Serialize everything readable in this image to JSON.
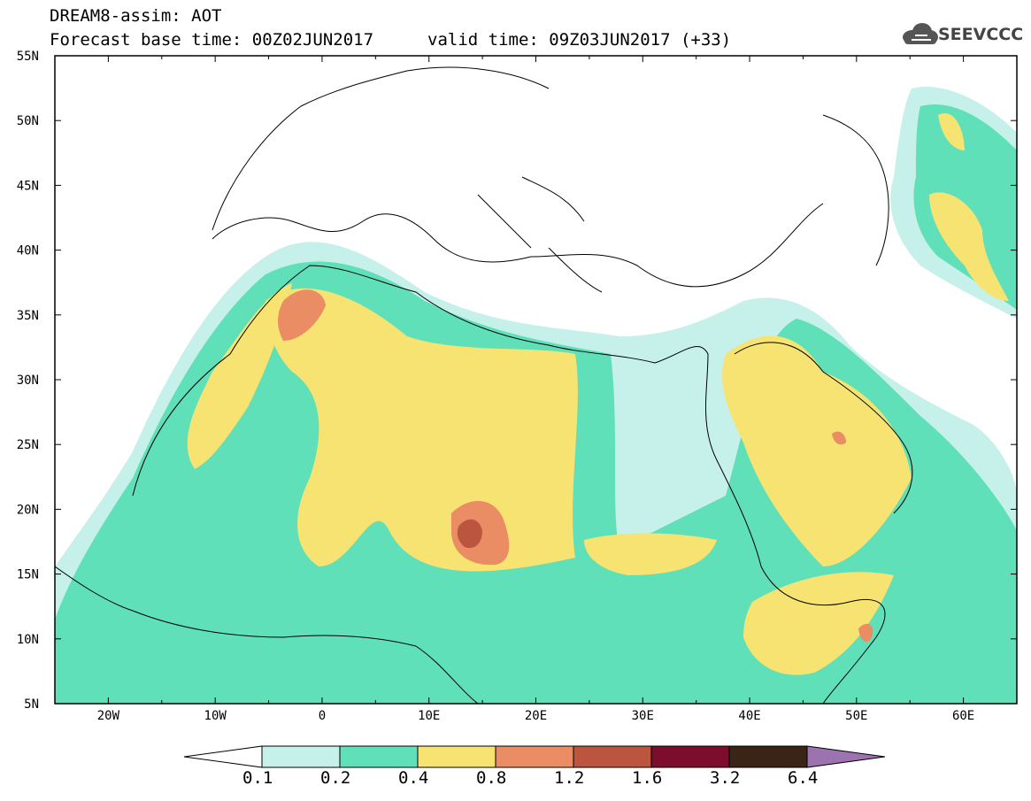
{
  "title": {
    "line1": "DREAM8-assim: AOT",
    "base_time": "Forecast base time: 00Z02JUN2017",
    "valid_time": "valid time: 09Z03JUN2017 (+33)"
  },
  "logo": {
    "text": "SEEVCCC",
    "icon": "cloud-icon"
  },
  "map": {
    "lon_range": [
      -25,
      65
    ],
    "lat_range": [
      5,
      55
    ],
    "lon_ticks": [
      "20W",
      "10W",
      "0",
      "10E",
      "20E",
      "30E",
      "40E",
      "50E",
      "60E"
    ],
    "lat_ticks": [
      "55N",
      "50N",
      "45N",
      "40N",
      "35N",
      "30N",
      "25N",
      "20N",
      "15N",
      "10N",
      "5N"
    ]
  },
  "colorbar": {
    "labels": [
      "0.1",
      "0.2",
      "0.4",
      "0.8",
      "1.2",
      "1.6",
      "3.2",
      "6.4"
    ],
    "colors": [
      "#c6f0ea",
      "#5fe0b8",
      "#f7e372",
      "#ea8c64",
      "#bb5540",
      "#7c0d2c",
      "#3a2416",
      "#9c72b0"
    ]
  }
}
